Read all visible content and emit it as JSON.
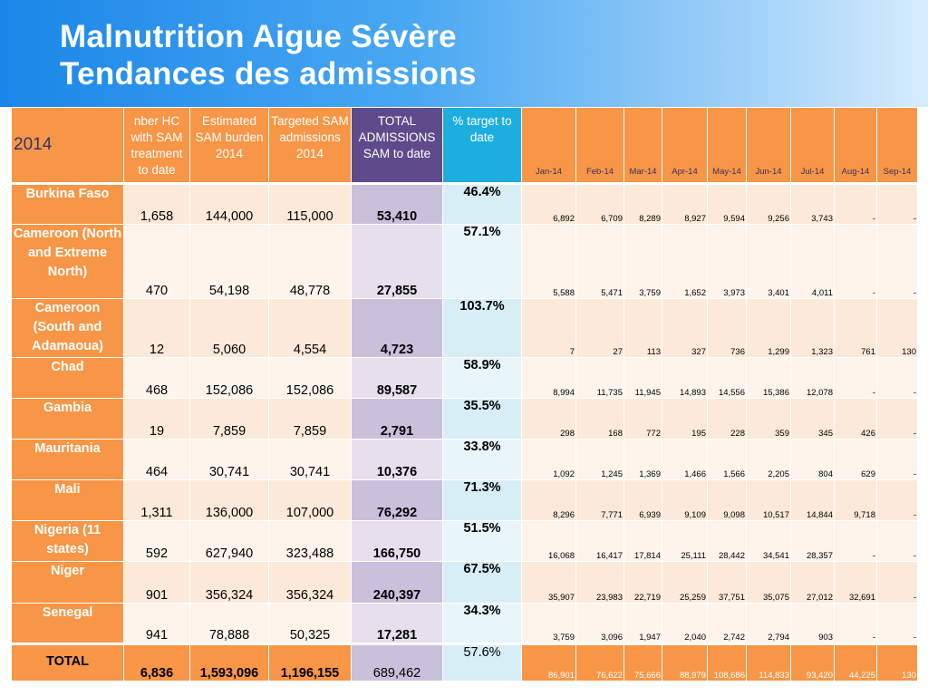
{
  "title": {
    "line1": "Malnutrition Aigue Sévère",
    "line2": "Tendances des admissions"
  },
  "table": {
    "year_label": "2014",
    "columns": {
      "hc": "nber HC with SAM treatment to date",
      "burden": "Estimated SAM burden 2014",
      "targeted": "Targeted SAM admissions 2014",
      "total": "TOTAL ADMISSIONS SAM to date",
      "pct": "% target to date"
    },
    "months": [
      "Jan-14",
      "Feb-14",
      "Mar-14",
      "Apr-14",
      "May-14",
      "Jun-14",
      "Jul-14",
      "Aug-14",
      "Sep-14"
    ],
    "rows": [
      {
        "country": "Burkina Faso",
        "hc": "1,658",
        "burden": "144,000",
        "targeted": "115,000",
        "total": "53,410",
        "pct": "46.4%",
        "monthly": [
          "6,892",
          "6,709",
          "8,289",
          "8,927",
          "9,594",
          "9,256",
          "3,743",
          "-",
          "-"
        ]
      },
      {
        "country": "Cameroon (North and Extreme North)",
        "hc": "470",
        "burden": "54,198",
        "targeted": "48,778",
        "total": "27,855",
        "pct": "57.1%",
        "monthly": [
          "5,588",
          "5,471",
          "3,759",
          "1,652",
          "3,973",
          "3,401",
          "4,011",
          "-",
          "-"
        ]
      },
      {
        "country": "Cameroon (South and Adamaoua)",
        "hc": "12",
        "burden": "5,060",
        "targeted": "4,554",
        "total": "4,723",
        "pct": "103.7%",
        "monthly": [
          "7",
          "27",
          "113",
          "327",
          "736",
          "1,299",
          "1,323",
          "761",
          "130"
        ]
      },
      {
        "country": "Chad",
        "hc": "468",
        "burden": "152,086",
        "targeted": "152,086",
        "total": "89,587",
        "pct": "58.9%",
        "monthly": [
          "8,994",
          "11,735",
          "11,945",
          "14,893",
          "14,556",
          "15,386",
          "12,078",
          "-",
          "-"
        ]
      },
      {
        "country": "Gambia",
        "hc": "19",
        "burden": "7,859",
        "targeted": "7,859",
        "total": "2,791",
        "pct": "35.5%",
        "monthly": [
          "298",
          "168",
          "772",
          "195",
          "228",
          "359",
          "345",
          "426",
          "-"
        ]
      },
      {
        "country": "Mauritania",
        "hc": "464",
        "burden": "30,741",
        "targeted": "30,741",
        "total": "10,376",
        "pct": "33.8%",
        "monthly": [
          "1,092",
          "1,245",
          "1,369",
          "1,466",
          "1,566",
          "2,205",
          "804",
          "629",
          "-"
        ]
      },
      {
        "country": "Mali",
        "hc": "1,311",
        "burden": "136,000",
        "targeted": "107,000",
        "total": "76,292",
        "pct": "71.3%",
        "monthly": [
          "8,296",
          "7,771",
          "6,939",
          "9,109",
          "9,098",
          "10,517",
          "14,844",
          "9,718",
          "-"
        ]
      },
      {
        "country": "Nigeria (11 states)",
        "hc": "592",
        "burden": "627,940",
        "targeted": "323,488",
        "total": "166,750",
        "pct": "51.5%",
        "monthly": [
          "16,068",
          "16,417",
          "17,814",
          "25,111",
          "28,442",
          "34,541",
          "28,357",
          "-",
          "-"
        ]
      },
      {
        "country": "Niger",
        "hc": "901",
        "burden": "356,324",
        "targeted": "356,324",
        "total": "240,397",
        "pct": "67.5%",
        "monthly": [
          "35,907",
          "23,983",
          "22,719",
          "25,259",
          "37,751",
          "35,075",
          "27,012",
          "32,691",
          "-"
        ]
      },
      {
        "country": "Senegal",
        "hc": "941",
        "burden": "78,888",
        "targeted": "50,325",
        "total": "17,281",
        "pct": "34.3%",
        "monthly": [
          "3,759",
          "3,096",
          "1,947",
          "2,040",
          "2,742",
          "2,794",
          "903",
          "-",
          "-"
        ]
      }
    ],
    "total_row": {
      "country": "TOTAL",
      "hc": "6,836",
      "burden": "1,593,096",
      "targeted": "1,196,155",
      "total": "689,462",
      "pct": "57.6%",
      "monthly": [
        "86,901",
        "76,622",
        "75,666",
        "88,979",
        "108,686",
        "114,833",
        "93,420",
        "44,225",
        "130"
      ]
    }
  }
}
